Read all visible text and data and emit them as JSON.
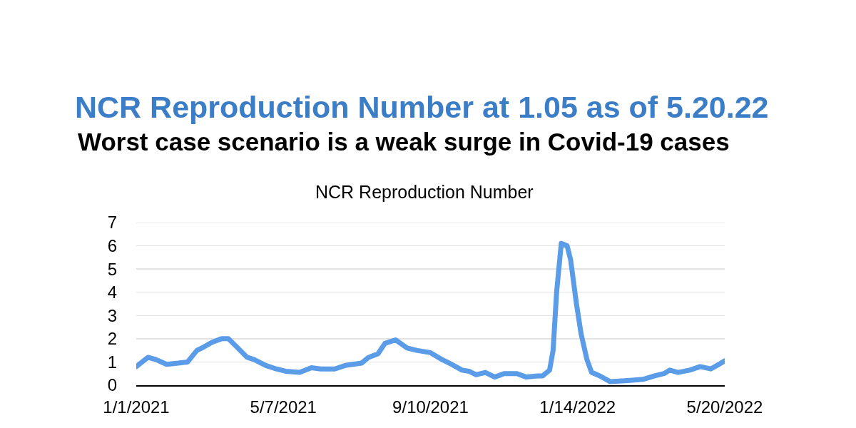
{
  "chart_data": {
    "type": "line",
    "title": "NCR Reproduction Number at 1.05 as of 5.20.22",
    "subtitle": "Worst case scenario is a weak surge in Covid-19 cases",
    "annotations": [
      "NCR Reproduction Number"
    ],
    "x": [
      "2021-01-01",
      "2021-01-11",
      "2021-01-18",
      "2021-01-27",
      "2021-02-06",
      "2021-02-14",
      "2021-02-22",
      "2021-02-28",
      "2021-03-07",
      "2021-03-15",
      "2021-03-21",
      "2021-03-27",
      "2021-04-06",
      "2021-04-12",
      "2021-04-22",
      "2021-05-01",
      "2021-05-09",
      "2021-05-21",
      "2021-05-31",
      "2021-06-08",
      "2021-06-20",
      "2021-06-29",
      "2021-07-13",
      "2021-07-19",
      "2021-07-27",
      "2021-08-02",
      "2021-08-11",
      "2021-08-21",
      "2021-08-29",
      "2021-09-10",
      "2021-09-20",
      "2021-09-28",
      "2021-10-07",
      "2021-10-13",
      "2021-10-19",
      "2021-10-27",
      "2021-11-04",
      "2021-11-12",
      "2021-11-23",
      "2021-12-01",
      "2021-12-11",
      "2021-12-15",
      "2021-12-21",
      "2021-12-24",
      "2021-12-27",
      "2021-12-31",
      "2022-01-05",
      "2022-01-08",
      "2022-01-13",
      "2022-01-17",
      "2022-01-22",
      "2022-01-26",
      "2022-02-02",
      "2022-02-11",
      "2022-02-26",
      "2022-03-11",
      "2022-03-21",
      "2022-03-29",
      "2022-04-03",
      "2022-04-10",
      "2022-04-20",
      "2022-04-29",
      "2022-05-08",
      "2022-05-15",
      "2022-05-20"
    ],
    "values": [
      0.8,
      1.2,
      1.1,
      0.9,
      0.95,
      1.0,
      1.5,
      1.65,
      1.85,
      2.0,
      2.0,
      1.7,
      1.2,
      1.1,
      0.85,
      0.7,
      0.6,
      0.55,
      0.75,
      0.7,
      0.7,
      0.85,
      0.95,
      1.2,
      1.35,
      1.8,
      1.95,
      1.6,
      1.5,
      1.4,
      1.1,
      0.9,
      0.65,
      0.6,
      0.45,
      0.55,
      0.35,
      0.5,
      0.5,
      0.35,
      0.4,
      0.4,
      0.65,
      1.5,
      4.0,
      6.1,
      6.0,
      5.4,
      3.5,
      2.2,
      1.1,
      0.55,
      0.4,
      0.15,
      0.2,
      0.25,
      0.4,
      0.5,
      0.65,
      0.55,
      0.65,
      0.8,
      0.7,
      0.9,
      1.05
    ],
    "color": "#5b9ce8",
    "xlim": [
      "2021-01-01",
      "2022-05-20"
    ],
    "xticks": [
      {
        "value": "2021-01-01",
        "label": "1/1/2021"
      },
      {
        "value": "2021-05-07",
        "label": "5/7/2021"
      },
      {
        "value": "2021-09-10",
        "label": "9/10/2021"
      },
      {
        "value": "2022-01-14",
        "label": "1/14/2022"
      },
      {
        "value": "2022-05-20",
        "label": "5/20/2022"
      }
    ],
    "ylim": [
      0,
      7
    ],
    "yticks": [
      0,
      1,
      2,
      3,
      4,
      5,
      6,
      7
    ],
    "grid": "y"
  }
}
